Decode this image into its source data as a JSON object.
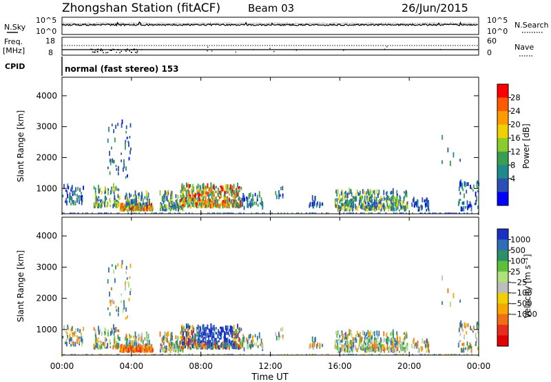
{
  "header": {
    "station": "Zhongshan Station (fitACF)",
    "beam": "Beam 03",
    "date": "26/Jun/2015"
  },
  "ops": {
    "nsky_label": "N.Sky",
    "nsky_ticks": [
      "10^5",
      "10^0"
    ],
    "nsearch_label": "N.Search",
    "nsearch_ticks": [
      "10^5",
      "10^0"
    ],
    "freq_label": "Freq.",
    "freq_unit": "[MHz]",
    "freq_ticks": [
      "18",
      "8"
    ],
    "nave_label": "Nave",
    "nave_ticks": [
      "60",
      "0"
    ],
    "cpid_label": "CPID",
    "cpid_text": "normal (fast stereo) 153"
  },
  "chart_data": [
    {
      "type": "heatmap",
      "name": "power",
      "ylabel": "Slant Range [km]",
      "yticks": [
        "4000",
        "3000",
        "2000",
        "1000"
      ],
      "ylim": [
        180,
        4600
      ],
      "colorbar_label": "Power [dB]",
      "colorbar_ticks": [
        "28",
        "24",
        "20",
        "16",
        "12",
        "8",
        "4"
      ],
      "colorbar_range": [
        0,
        32
      ],
      "colors": [
        "#0000ff",
        "#2b4fb4",
        "#1f8a8c",
        "#3a9e52",
        "#8ccc2a",
        "#f0d000",
        "#ff9a00",
        "#ff5a00",
        "#ff0000"
      ]
    },
    {
      "type": "heatmap",
      "name": "velocity",
      "ylabel": "Slant Range [km]",
      "yticks": [
        "4000",
        "3000",
        "2000",
        "1000"
      ],
      "ylim": [
        180,
        4600
      ],
      "colorbar_label": "Velocity [m s⁻¹]",
      "colorbar_ticks": [
        "1000",
        "500",
        "100",
        "25",
        "−25",
        "−100",
        "−500",
        "−1000"
      ],
      "colors": [
        "#1a2fc4",
        "#2f6db8",
        "#2d8f6a",
        "#5dbf3a",
        "#aee17a",
        "#bdbdbd",
        "#f0d000",
        "#f7a600",
        "#f06e14",
        "#e82d1c",
        "#e00000"
      ]
    }
  ],
  "xaxis": {
    "ticks": [
      "00:00",
      "04:00",
      "08:00",
      "12:00",
      "16:00",
      "20:00",
      "00:00"
    ],
    "label": "Time UT"
  }
}
